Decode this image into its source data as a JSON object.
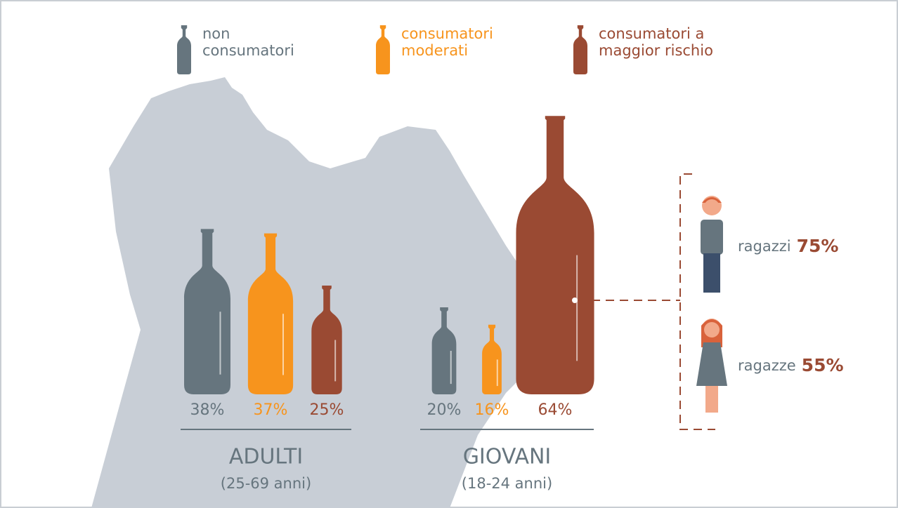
{
  "chart_data": {
    "type": "bottle",
    "categories": [
      "ADULTI",
      "GIOVANI"
    ],
    "category_subtitles": [
      "(25-69 anni)",
      "(18-24 anni)"
    ],
    "series": [
      {
        "name": "non consumatori",
        "color": "#66757e",
        "values": [
          38,
          20
        ],
        "value_labels": [
          "38%",
          "20%"
        ]
      },
      {
        "name": "consumatori moderati",
        "color": "#f7941d",
        "values": [
          37,
          16
        ],
        "value_labels": [
          "37%",
          "16%"
        ]
      },
      {
        "name": "consumatori a maggior rischio",
        "color": "#9a4a33",
        "values": [
          25,
          64
        ],
        "value_labels": [
          "25%",
          "64%"
        ]
      }
    ],
    "breakdown": [
      {
        "label": "ragazzi",
        "value": 75,
        "value_label": "75%"
      },
      {
        "label": "ragazze",
        "value": 55,
        "value_label": "55%"
      }
    ]
  }
}
